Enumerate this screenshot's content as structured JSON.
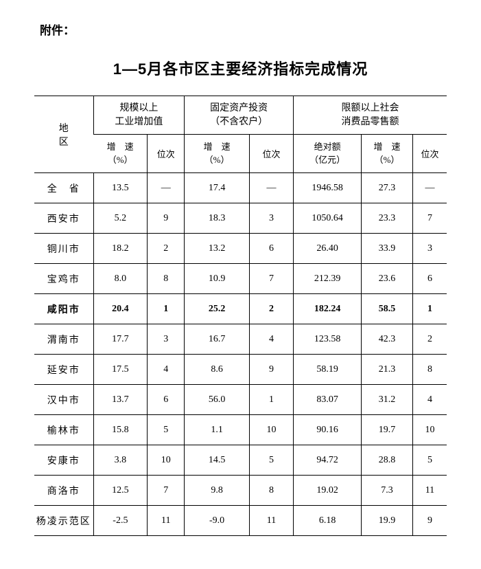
{
  "attachment_label": "附件：",
  "title": "1—5月各市区主要经济指标完成情况",
  "header": {
    "region": "地　区",
    "group1": "规模以上\n工业增加值",
    "group2": "固定资产投资\n（不含农户）",
    "group3": "限额以上社会\n消费品零售额",
    "growth": "增　速\n（%）",
    "rank": "位次",
    "abs": "绝对额\n（亿元）"
  },
  "rows": [
    {
      "region": "全　省",
      "g1_growth": "13.5",
      "g1_rank": "—",
      "g2_growth": "17.4",
      "g2_rank": "—",
      "g3_abs": "1946.58",
      "g3_growth": "27.3",
      "g3_rank": "—",
      "bold": false
    },
    {
      "region": "西安市",
      "g1_growth": "5.2",
      "g1_rank": "9",
      "g2_growth": "18.3",
      "g2_rank": "3",
      "g3_abs": "1050.64",
      "g3_growth": "23.3",
      "g3_rank": "7",
      "bold": false
    },
    {
      "region": "铜川市",
      "g1_growth": "18.2",
      "g1_rank": "2",
      "g2_growth": "13.2",
      "g2_rank": "6",
      "g3_abs": "26.40",
      "g3_growth": "33.9",
      "g3_rank": "3",
      "bold": false
    },
    {
      "region": "宝鸡市",
      "g1_growth": "8.0",
      "g1_rank": "8",
      "g2_growth": "10.9",
      "g2_rank": "7",
      "g3_abs": "212.39",
      "g3_growth": "23.6",
      "g3_rank": "6",
      "bold": false
    },
    {
      "region": "咸阳市",
      "g1_growth": "20.4",
      "g1_rank": "1",
      "g2_growth": "25.2",
      "g2_rank": "2",
      "g3_abs": "182.24",
      "g3_growth": "58.5",
      "g3_rank": "1",
      "bold": true
    },
    {
      "region": "渭南市",
      "g1_growth": "17.7",
      "g1_rank": "3",
      "g2_growth": "16.7",
      "g2_rank": "4",
      "g3_abs": "123.58",
      "g3_growth": "42.3",
      "g3_rank": "2",
      "bold": false
    },
    {
      "region": "延安市",
      "g1_growth": "17.5",
      "g1_rank": "4",
      "g2_growth": "8.6",
      "g2_rank": "9",
      "g3_abs": "58.19",
      "g3_growth": "21.3",
      "g3_rank": "8",
      "bold": false
    },
    {
      "region": "汉中市",
      "g1_growth": "13.7",
      "g1_rank": "6",
      "g2_growth": "56.0",
      "g2_rank": "1",
      "g3_abs": "83.07",
      "g3_growth": "31.2",
      "g3_rank": "4",
      "bold": false
    },
    {
      "region": "榆林市",
      "g1_growth": "15.8",
      "g1_rank": "5",
      "g2_growth": "1.1",
      "g2_rank": "10",
      "g3_abs": "90.16",
      "g3_growth": "19.7",
      "g3_rank": "10",
      "bold": false
    },
    {
      "region": "安康市",
      "g1_growth": "3.8",
      "g1_rank": "10",
      "g2_growth": "14.5",
      "g2_rank": "5",
      "g3_abs": "94.72",
      "g3_growth": "28.8",
      "g3_rank": "5",
      "bold": false
    },
    {
      "region": "商洛市",
      "g1_growth": "12.5",
      "g1_rank": "7",
      "g2_growth": "9.8",
      "g2_rank": "8",
      "g3_abs": "19.02",
      "g3_growth": "7.3",
      "g3_rank": "11",
      "bold": false
    },
    {
      "region": "杨凌示范区",
      "g1_growth": "-2.5",
      "g1_rank": "11",
      "g2_growth": "-9.0",
      "g2_rank": "11",
      "g3_abs": "6.18",
      "g3_growth": "19.9",
      "g3_rank": "9",
      "bold": false
    }
  ]
}
